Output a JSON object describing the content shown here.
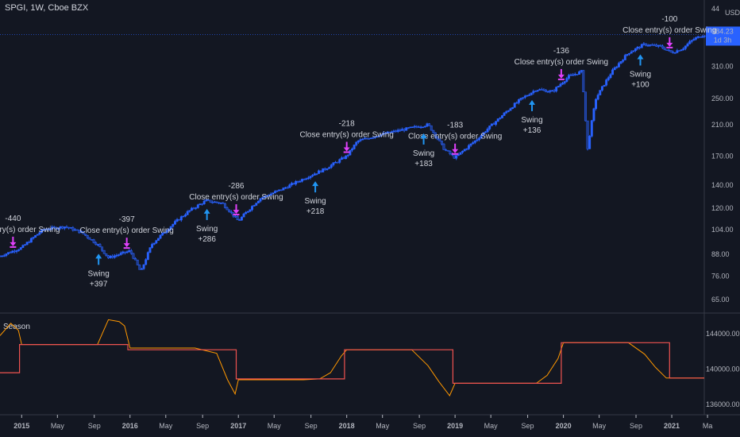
{
  "header": {
    "title": "SPGI, 1W, Cboe BZX"
  },
  "price_scale": {
    "currency": "USD",
    "top_label": "44"
  },
  "price_badge": {
    "value": "384.23",
    "countdown": "1d 3h",
    "color": "#2962ff"
  },
  "colors": {
    "up": "#2962ff",
    "down": "#2962ff",
    "entry_arrow": "#2196f3",
    "exit_marker": "#e040fb",
    "season_line": "#ff9800",
    "season_step": "#ef5350"
  },
  "chart_data": [
    {
      "type": "line",
      "name": "price",
      "yscale": "log",
      "ylim": [
        60,
        440
      ],
      "y_ticks": [
        "310.00",
        "250.00",
        "210.00",
        "170.00",
        "140.00",
        "120.00",
        "104.00",
        "88.00",
        "76.00",
        "65.00"
      ],
      "y_tick_values": [
        310,
        250,
        210,
        170,
        140,
        120,
        104,
        88,
        76,
        65
      ],
      "x_ticks": [
        "2015",
        "May",
        "Sep",
        "2016",
        "May",
        "Sep",
        "2017",
        "May",
        "Sep",
        "2018",
        "May",
        "Sep",
        "2019",
        "May",
        "Sep",
        "2020",
        "May",
        "Sep",
        "2021",
        "Ma"
      ],
      "x_tick_values": [
        2015.0,
        2015.33,
        2015.67,
        2016.0,
        2016.33,
        2016.67,
        2017.0,
        2017.33,
        2017.67,
        2018.0,
        2018.33,
        2018.67,
        2019.0,
        2019.33,
        2019.67,
        2020.0,
        2020.33,
        2020.67,
        2021.0,
        2021.33
      ],
      "x": [
        2014.8,
        2015.0,
        2015.2,
        2015.4,
        2015.55,
        2015.7,
        2015.8,
        2016.0,
        2016.1,
        2016.2,
        2016.4,
        2016.55,
        2016.7,
        2016.85,
        2017.0,
        2017.2,
        2017.4,
        2017.6,
        2017.8,
        2018.0,
        2018.1,
        2018.3,
        2018.55,
        2018.75,
        2018.9,
        2019.0,
        2019.2,
        2019.4,
        2019.6,
        2019.75,
        2019.9,
        2020.05,
        2020.17,
        2020.22,
        2020.3,
        2020.45,
        2020.6,
        2020.75,
        2020.9,
        2021.0,
        2021.1,
        2021.2,
        2021.3
      ],
      "values": [
        87,
        92,
        104,
        106,
        102,
        94,
        86,
        90,
        78,
        94,
        108,
        118,
        126,
        124,
        110,
        128,
        136,
        146,
        156,
        170,
        188,
        196,
        204,
        210,
        178,
        168,
        190,
        218,
        248,
        266,
        262,
        290,
        300,
        175,
        250,
        300,
        340,
        360,
        354,
        340,
        350,
        372,
        384
      ],
      "annotations": [
        {
          "x": 2014.92,
          "label_top": "-440",
          "label_mid": "Close entry(s) order Swing"
        },
        {
          "x": 2015.97,
          "label_top": "-397",
          "label_mid": "Close entry(s) order Swing"
        },
        {
          "x": 2016.98,
          "label_top": "-286",
          "label_mid": "Close entry(s) order Swing"
        },
        {
          "x": 2018.0,
          "label_top": "-218",
          "label_mid": "Close entry(s) order Swing"
        },
        {
          "x": 2019.0,
          "label_top": "-183",
          "label_mid": "Close entry(s) order Swing"
        },
        {
          "x": 2019.98,
          "label_top": "-136",
          "label_mid": "Close entry(s) order Swing"
        },
        {
          "x": 2020.98,
          "label_top": "-100",
          "label_mid": "Close entry(s) order Swing"
        }
      ],
      "entries": [
        {
          "x": 2015.71,
          "label": "Swing",
          "value": "+397"
        },
        {
          "x": 2016.71,
          "label": "Swing",
          "value": "+286"
        },
        {
          "x": 2017.71,
          "label": "Swing",
          "value": "+218"
        },
        {
          "x": 2018.71,
          "label": "Swing",
          "value": "+183"
        },
        {
          "x": 2019.71,
          "label": "Swing",
          "value": "+136"
        },
        {
          "x": 2020.71,
          "label": "Swing",
          "value": "+100"
        }
      ]
    },
    {
      "type": "line",
      "name": "Season",
      "ylim": [
        135200,
        146000
      ],
      "y_ticks": [
        "144000.00",
        "140000.00",
        "136000.00"
      ],
      "y_tick_values": [
        144000,
        140000,
        136000
      ],
      "line_x": [
        2014.8,
        2014.9,
        2014.97,
        2015.0,
        2015.7,
        2015.8,
        2015.9,
        2015.95,
        2016.0,
        2016.6,
        2016.8,
        2016.9,
        2016.97,
        2017.0,
        2017.6,
        2017.75,
        2017.85,
        2017.95,
        2018.0,
        2018.6,
        2018.75,
        2018.85,
        2018.95,
        2019.0,
        2019.6,
        2019.75,
        2019.85,
        2019.95,
        2020.0,
        2020.6,
        2020.75,
        2020.85,
        2020.95,
        2021.0,
        2021.3
      ],
      "line_values": [
        143800,
        145200,
        144400,
        142800,
        142800,
        145600,
        145400,
        144900,
        142400,
        142400,
        141800,
        138800,
        137200,
        138800,
        138800,
        138900,
        139600,
        141500,
        142200,
        142200,
        140400,
        138600,
        137000,
        138400,
        138400,
        138400,
        139300,
        141200,
        143000,
        143000,
        141700,
        140200,
        139000,
        139000,
        139000
      ],
      "step_x": [
        2014.8,
        2014.98,
        2014.98,
        2015.98,
        2015.98,
        2016.98,
        2016.98,
        2017.98,
        2017.98,
        2018.98,
        2018.98,
        2019.98,
        2019.98,
        2020.98,
        2020.98,
        2021.3
      ],
      "step_values": [
        139600,
        139600,
        142800,
        142800,
        142200,
        142200,
        138900,
        138900,
        142200,
        142200,
        138400,
        138400,
        143000,
        143000,
        139000,
        139000
      ]
    }
  ],
  "subpane": {
    "label": "Season"
  }
}
